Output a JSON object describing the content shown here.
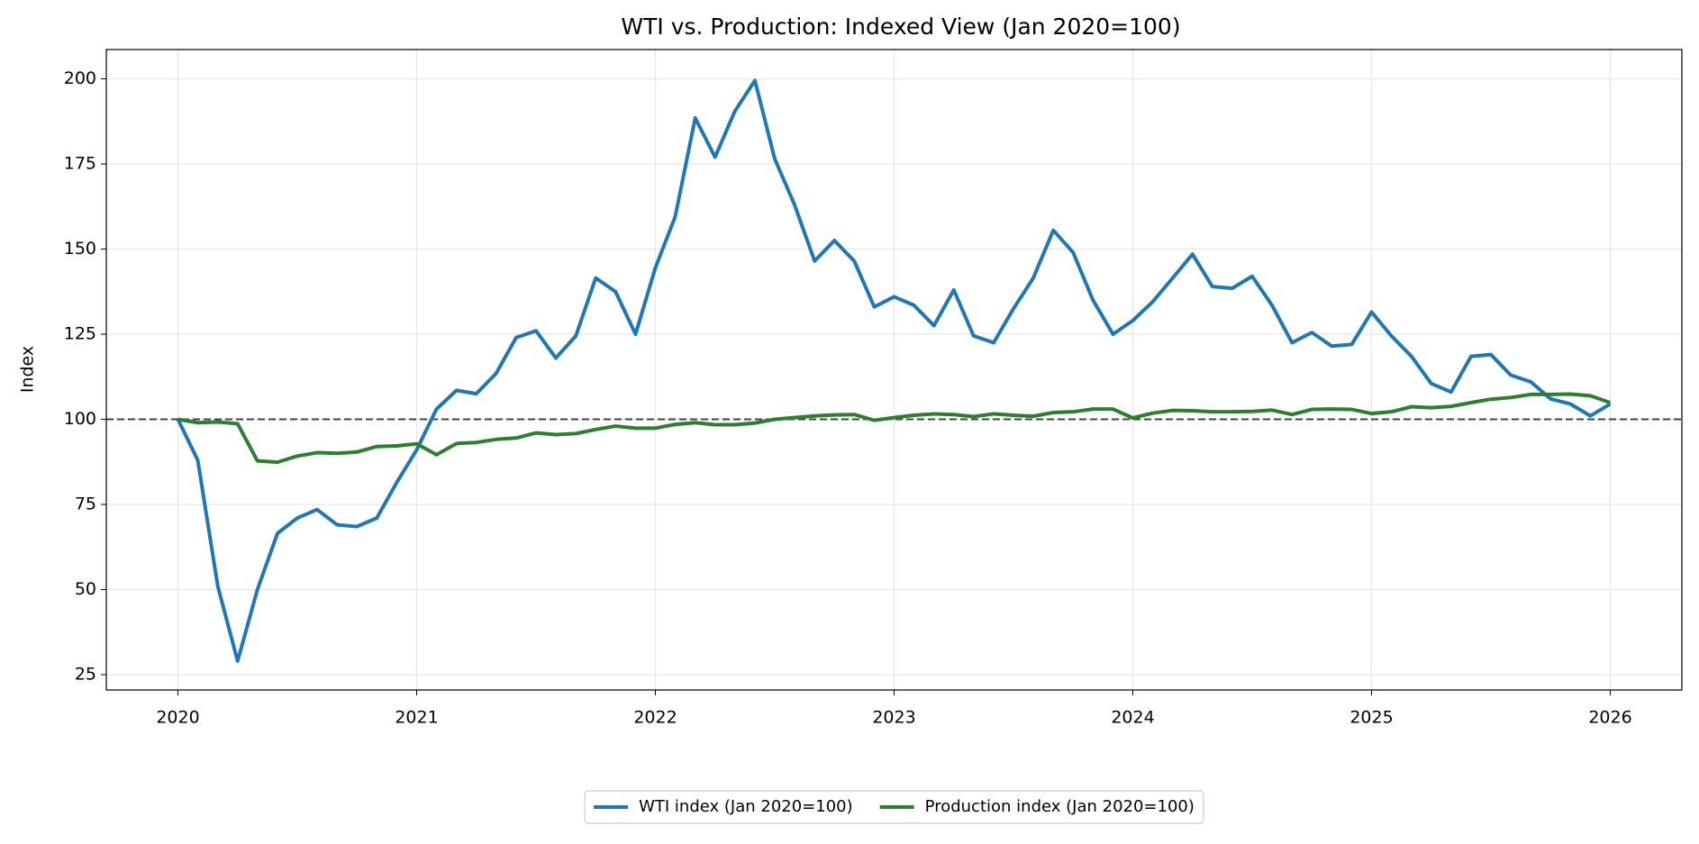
{
  "chart_data": {
    "type": "line",
    "title": "WTI vs. Production: Indexed View (Jan 2020=100)",
    "ylabel": "Index",
    "x": [
      2020,
      2020.083,
      2020.167,
      2020.25,
      2020.333,
      2020.417,
      2020.5,
      2020.583,
      2020.667,
      2020.75,
      2020.833,
      2020.917,
      2021,
      2021.083,
      2021.167,
      2021.25,
      2021.333,
      2021.417,
      2021.5,
      2021.583,
      2021.667,
      2021.75,
      2021.833,
      2021.917,
      2022,
      2022.083,
      2022.167,
      2022.25,
      2022.333,
      2022.417,
      2022.5,
      2022.583,
      2022.667,
      2022.75,
      2022.833,
      2022.917,
      2023,
      2023.083,
      2023.167,
      2023.25,
      2023.333,
      2023.417,
      2023.5,
      2023.583,
      2023.667,
      2023.75,
      2023.833,
      2023.917,
      2024,
      2024.083,
      2024.167,
      2024.25,
      2024.333,
      2024.417,
      2024.5,
      2024.583,
      2024.667,
      2024.75,
      2024.833,
      2024.917,
      2025,
      2025.083,
      2025.167,
      2025.25,
      2025.333,
      2025.417,
      2025.5,
      2025.583,
      2025.667,
      2025.75,
      2025.833,
      2025.917,
      2026
    ],
    "series": [
      {
        "name": "WTI index (Jan 2020=100)",
        "color": "#1f77b4",
        "values": [
          100,
          88,
          51,
          29,
          50,
          66.5,
          71,
          73.5,
          69,
          68.5,
          71,
          81.5,
          91,
          103,
          108.5,
          107.5,
          113.5,
          124,
          126,
          118,
          124.5,
          141.5,
          137.5,
          125,
          144.5,
          159.5,
          188.5,
          177,
          190.5,
          199.5,
          176.5,
          163,
          146.5,
          152.5,
          146.5,
          133,
          136,
          133.5,
          127.5,
          138,
          124.5,
          122.5,
          132.5,
          141.5,
          155.5,
          149,
          135,
          125,
          129,
          134.5,
          141.5,
          148.5,
          139,
          138.5,
          142,
          133.5,
          122.5,
          125.5,
          121.5,
          122,
          131.5,
          124.5,
          118.5,
          110.5,
          108,
          118.5,
          119,
          113,
          111,
          106,
          104.5,
          101,
          104.5
        ]
      },
      {
        "name": "Production index (Jan 2020=100)",
        "color": "#2e7d32",
        "values": [
          100,
          99,
          99.2,
          98.7,
          87.8,
          87.4,
          89.2,
          90.2,
          90,
          90.4,
          92,
          92.2,
          92.8,
          89.6,
          92.9,
          93.2,
          94.1,
          94.5,
          96,
          95.5,
          95.8,
          97,
          98,
          97.4,
          97.4,
          98.5,
          99,
          98.4,
          98.4,
          98.9,
          100,
          100.5,
          101,
          101.3,
          101.4,
          99.7,
          100.5,
          101.2,
          101.6,
          101.4,
          100.8,
          101.6,
          101.2,
          100.9,
          102,
          102.2,
          103,
          103,
          100.4,
          101.8,
          102.6,
          102.5,
          102.2,
          102.2,
          102.3,
          102.7,
          101.4,
          102.9,
          103,
          102.9,
          101.7,
          102.2,
          103.7,
          103.4,
          103.8,
          104.9,
          105.9,
          106.4,
          107.3,
          107.3,
          107.4,
          106.9,
          104.9
        ]
      }
    ],
    "hline": 100,
    "xlim": [
      2019.7,
      2026.3
    ],
    "xticks": [
      2020,
      2021,
      2022,
      2023,
      2024,
      2025,
      2026
    ],
    "ylim": [
      20.5,
      208.6
    ],
    "yticks": [
      25,
      50,
      75,
      100,
      125,
      150,
      175,
      200
    ],
    "grid": true,
    "legend": "lower center"
  }
}
